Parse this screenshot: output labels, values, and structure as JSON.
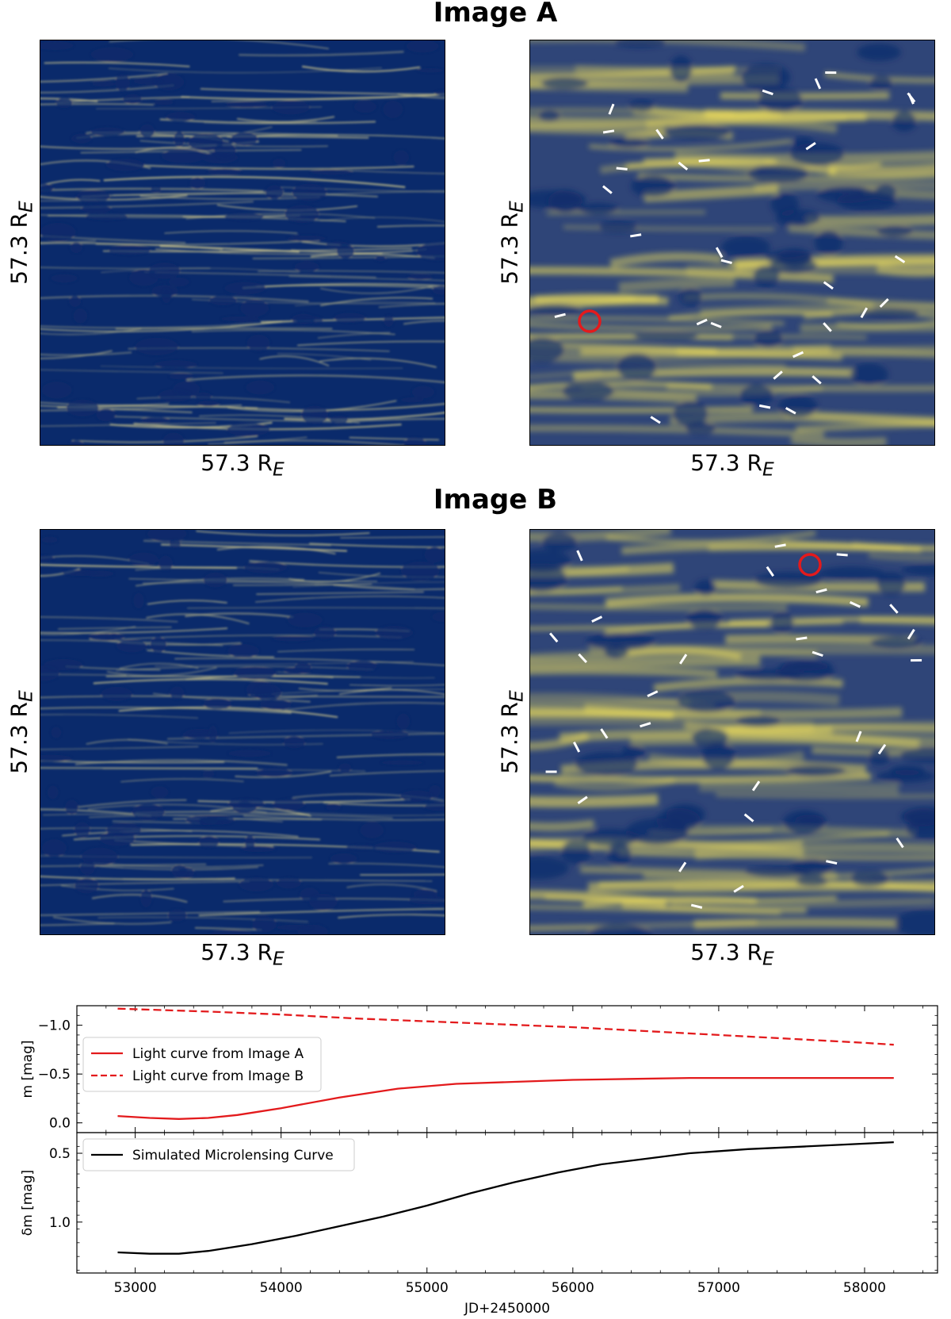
{
  "figure": {
    "image_a_title": "Image A",
    "image_b_title": "Image B",
    "axis_size_label": "57.3 R",
    "axis_size_subscript": "E"
  },
  "colors": {
    "map_dark": "#0a2a6b",
    "map_mid": "#5b6a86",
    "map_bright": "#f4e25a",
    "caustic_line": "#d9cf8e",
    "track_marker": "#ffffff",
    "highlight_circle": "#e31a1c",
    "curve_red": "#e31a1c",
    "curve_black": "#000000"
  },
  "panels": {
    "a_left": {
      "kind": "caustic map",
      "source_image": "A"
    },
    "a_right": {
      "kind": "convolved magnification map with track markers",
      "source_image": "A",
      "highlight": "red circle"
    },
    "b_left": {
      "kind": "caustic map",
      "source_image": "B"
    },
    "b_right": {
      "kind": "convolved magnification map with track markers",
      "source_image": "B",
      "highlight": "red circle"
    }
  },
  "chart_data": [
    {
      "type": "line",
      "ylabel": "m [mag]",
      "ylim": [
        0.1,
        -1.2
      ],
      "yticks": [
        -1.0,
        -0.5,
        0.0
      ],
      "ytick_labels": [
        "−1.0",
        "−0.5",
        "0.0"
      ],
      "xlim": [
        52600,
        58500
      ],
      "legend_position": "center-left",
      "series": [
        {
          "name": "Light curve from Image A",
          "style": "solid",
          "color": "#e31a1c",
          "x": [
            52880,
            53100,
            53300,
            53500,
            53700,
            54000,
            54400,
            54800,
            55200,
            55600,
            56000,
            56400,
            56800,
            57200,
            57600,
            58000,
            58200
          ],
          "y": [
            -0.07,
            -0.05,
            -0.04,
            -0.05,
            -0.08,
            -0.15,
            -0.26,
            -0.35,
            -0.4,
            -0.42,
            -0.44,
            -0.45,
            -0.46,
            -0.46,
            -0.46,
            -0.46,
            -0.46
          ]
        },
        {
          "name": "Light curve from Image B",
          "style": "dashed",
          "color": "#e31a1c",
          "x": [
            52880,
            53500,
            54000,
            54500,
            55000,
            55500,
            56000,
            56500,
            57000,
            57500,
            58000,
            58200
          ],
          "y": [
            -1.17,
            -1.14,
            -1.11,
            -1.07,
            -1.04,
            -1.01,
            -0.98,
            -0.94,
            -0.9,
            -0.86,
            -0.82,
            -0.8
          ]
        }
      ]
    },
    {
      "type": "line",
      "ylabel": "δm [mag]",
      "xlabel": "JD+2450000",
      "ylim": [
        1.37,
        0.35
      ],
      "yticks": [
        0.5,
        1.0
      ],
      "ytick_labels": [
        "0.5",
        "1.0"
      ],
      "xlim": [
        52600,
        58500
      ],
      "xticks": [
        53000,
        54000,
        55000,
        56000,
        57000,
        58000
      ],
      "xtick_labels": [
        "53000",
        "54000",
        "55000",
        "56000",
        "57000",
        "58000"
      ],
      "legend_position": "top-left",
      "series": [
        {
          "name": "Simulated Microlensing Curve",
          "style": "solid",
          "color": "#000000",
          "x": [
            52880,
            53100,
            53300,
            53500,
            53800,
            54100,
            54400,
            54700,
            55000,
            55300,
            55600,
            55900,
            56200,
            56500,
            56800,
            57200,
            57600,
            58000,
            58200
          ],
          "y": [
            1.22,
            1.23,
            1.23,
            1.21,
            1.16,
            1.1,
            1.03,
            0.96,
            0.88,
            0.79,
            0.71,
            0.64,
            0.58,
            0.54,
            0.5,
            0.47,
            0.45,
            0.43,
            0.42
          ]
        }
      ]
    }
  ]
}
